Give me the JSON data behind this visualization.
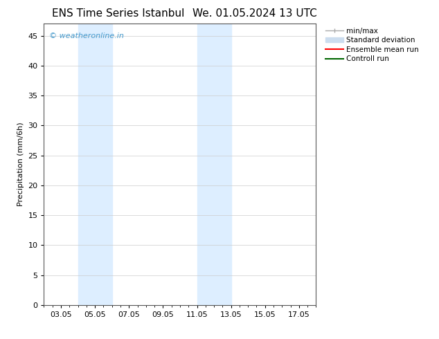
{
  "title_left": "ENS Time Series Istanbul",
  "title_right": "We. 01.05.2024 13 UTC",
  "ylabel": "Precipitation (mm/6h)",
  "xlim": [
    2.0,
    18.0
  ],
  "ylim": [
    0,
    47
  ],
  "yticks": [
    0,
    5,
    10,
    15,
    20,
    25,
    30,
    35,
    40,
    45
  ],
  "xtick_labels": [
    "03.05",
    "05.05",
    "07.05",
    "09.05",
    "11.05",
    "13.05",
    "15.05",
    "17.05"
  ],
  "xtick_positions": [
    3,
    5,
    7,
    9,
    11,
    13,
    15,
    17
  ],
  "bg_color": "#ffffff",
  "plot_bg_color": "#ffffff",
  "shaded_regions": [
    {
      "xmin": 4.0,
      "xmax": 6.0,
      "color": "#ddeeff"
    },
    {
      "xmin": 11.0,
      "xmax": 13.0,
      "color": "#ddeeff"
    }
  ],
  "watermark_text": "© weatheronline.in",
  "watermark_color": "#4499cc",
  "title_fontsize": 11,
  "axis_label_fontsize": 8,
  "tick_fontsize": 8,
  "legend_fontsize": 7.5,
  "legend_color_minmax": "#aaaaaa",
  "legend_color_std": "#ccddef",
  "legend_color_ens": "#ff0000",
  "legend_color_ctrl": "#006600"
}
